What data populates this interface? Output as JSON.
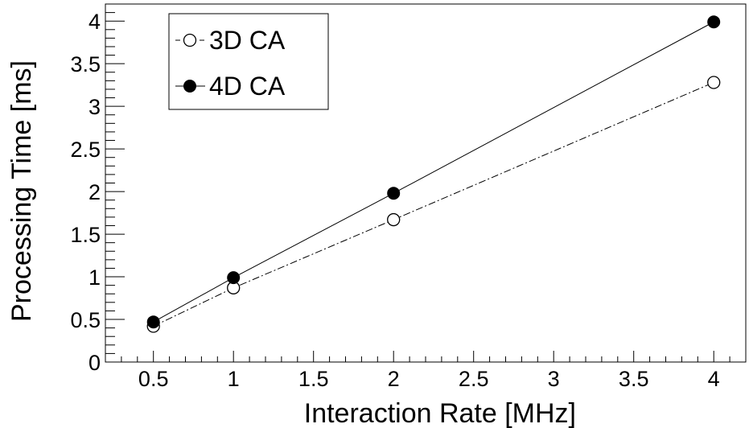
{
  "chart_data": {
    "type": "line",
    "xlabel": "Interaction Rate [MHz]",
    "ylabel": "Processing Time [ms]",
    "xlim": [
      0.2,
      4.2
    ],
    "ylim": [
      0,
      4.2
    ],
    "x_ticks": [
      "0.5",
      "1",
      "1.5",
      "2",
      "2.5",
      "3",
      "3.5",
      "4"
    ],
    "y_ticks": [
      "0",
      "0.5",
      "1",
      "1.5",
      "2",
      "2.5",
      "3",
      "3.5",
      "4"
    ],
    "grid": false,
    "legend_position": "top-left",
    "series": [
      {
        "name": "3D CA",
        "marker": "open-circle",
        "line_style": "dashed",
        "color": "#000000",
        "x": [
          0.5,
          1,
          2,
          4
        ],
        "y": [
          0.42,
          0.87,
          1.67,
          3.28
        ]
      },
      {
        "name": "4D CA",
        "marker": "filled-circle",
        "line_style": "solid",
        "color": "#000000",
        "x": [
          0.5,
          1,
          2,
          4
        ],
        "y": [
          0.47,
          0.99,
          1.98,
          3.99
        ]
      }
    ]
  }
}
